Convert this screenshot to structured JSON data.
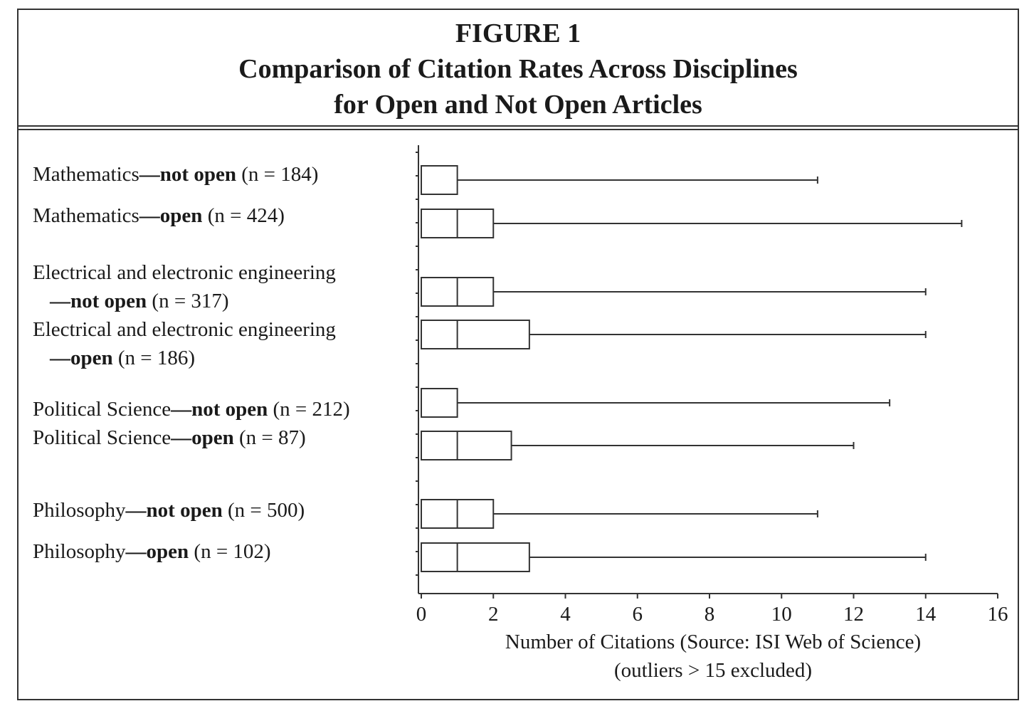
{
  "figure": {
    "title_lines": [
      "FIGURE 1",
      "Comparison of Citation Rates Across Disciplines",
      "for Open and Not Open Articles"
    ]
  },
  "chart_data": {
    "type": "boxplot",
    "orientation": "horizontal",
    "xlabel_lines": [
      "Number of Citations (Source: ISI Web of Science)",
      "(outliers > 15 excluded)"
    ],
    "xlim": [
      0,
      16
    ],
    "xticks": [
      0,
      2,
      4,
      6,
      8,
      10,
      12,
      14,
      16
    ],
    "grid": false,
    "series": [
      {
        "label_lines": [
          [
            "Mathematics",
            "—not open",
            " (n = 184)"
          ]
        ],
        "min": 0,
        "q1": 0,
        "median": 0,
        "q3": 1,
        "max": 11
      },
      {
        "label_lines": [
          [
            "Mathematics",
            "—open",
            " (n = 424)"
          ]
        ],
        "min": 0,
        "q1": 0,
        "median": 1,
        "q3": 2,
        "max": 15
      },
      {
        "label_lines": [
          [
            "Electrical and electronic engineering",
            "",
            ""
          ],
          [
            "",
            "—not open",
            " (n = 317)"
          ]
        ],
        "min": 0,
        "q1": 0,
        "median": 1,
        "q3": 2,
        "max": 14
      },
      {
        "label_lines": [
          [
            "Electrical and electronic engineering",
            "",
            ""
          ],
          [
            "",
            "—open",
            " (n = 186)"
          ]
        ],
        "min": 0,
        "q1": 0,
        "median": 1,
        "q3": 3,
        "max": 14
      },
      {
        "label_lines": [
          [
            "Political Science",
            "—not open",
            " (n = 212)"
          ]
        ],
        "min": 0,
        "q1": 0,
        "median": 0,
        "q3": 1,
        "max": 13
      },
      {
        "label_lines": [
          [
            "Political Science",
            "—open",
            " (n = 87)"
          ]
        ],
        "min": 0,
        "q1": 0,
        "median": 1,
        "q3": 2.5,
        "max": 12
      },
      {
        "label_lines": [
          [
            "Philosophy",
            "—not open",
            " (n = 500)"
          ]
        ],
        "min": 0,
        "q1": 0,
        "median": 1,
        "q3": 2,
        "max": 11
      },
      {
        "label_lines": [
          [
            "Philosophy",
            "—open",
            " (n = 102)"
          ]
        ],
        "min": 0,
        "q1": 0,
        "median": 1,
        "q3": 3,
        "max": 14
      }
    ]
  }
}
